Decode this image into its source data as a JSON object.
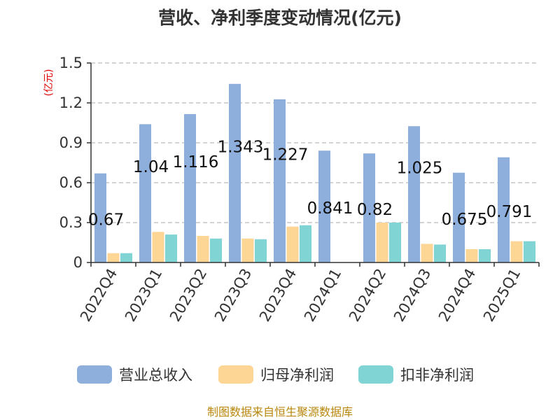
{
  "chart_data": {
    "type": "bar",
    "title": "营收、净利季度变动情况(亿元)",
    "unit_label": "(亿元)",
    "categories": [
      "2022Q4",
      "2023Q1",
      "2023Q2",
      "2023Q3",
      "2023Q4",
      "2024Q1",
      "2024Q2",
      "2024Q3",
      "2024Q4",
      "2025Q1"
    ],
    "series": [
      {
        "name": "营业总收入",
        "color": "#8eaedc",
        "values": [
          0.67,
          1.04,
          1.116,
          1.343,
          1.227,
          0.841,
          0.82,
          1.025,
          0.675,
          0.791
        ]
      },
      {
        "name": "归母净利润",
        "color": "#fdd594",
        "values": [
          0.07,
          0.23,
          0.2,
          0.18,
          0.27,
          null,
          0.3,
          0.14,
          0.1,
          0.16
        ]
      },
      {
        "name": "扣非净利润",
        "color": "#80d4d4",
        "values": [
          0.07,
          0.21,
          0.18,
          0.175,
          0.28,
          null,
          0.3,
          0.135,
          0.1,
          0.16
        ]
      }
    ],
    "data_labels": [
      "0.67",
      "1.04",
      "1.116",
      "1.343",
      "1.227",
      "0.841",
      "0.82",
      "1.025",
      "0.675",
      "0.791"
    ],
    "yticks": [
      "0",
      "0.3",
      "0.6",
      "0.9",
      "1.2",
      "1.5"
    ],
    "ylim": [
      0,
      1.5
    ],
    "grid": true,
    "legend_position": "bottom",
    "source": "制图数据来自恒生聚源数据库"
  }
}
